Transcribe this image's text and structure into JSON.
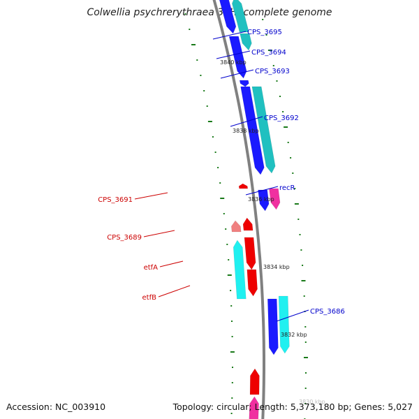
{
  "title": "Colwellia psychrerythraea 34H, complete genome",
  "footer": {
    "accession": "Accession: NC_003910",
    "summary": "Topology: circular; Length: 5,373,180 bp; Genes: 5,027"
  },
  "colors": {
    "backbone": "#808080",
    "forward_label": "#0000cc",
    "reverse_label": "#cc0000",
    "tick": "#1a7a1a"
  },
  "scale_labels": [
    "3840 kbp",
    "3838 kbp",
    "3836 kbp",
    "3834 kbp",
    "3832 kbp",
    "3830 kbp"
  ],
  "gene_labels": [
    {
      "name": "CPS_3695",
      "strand": "forward"
    },
    {
      "name": "CPS_3694",
      "strand": "forward"
    },
    {
      "name": "CPS_3693",
      "strand": "forward"
    },
    {
      "name": "CPS_3692",
      "strand": "forward"
    },
    {
      "name": "recR",
      "strand": "forward"
    },
    {
      "name": "CPS_3686",
      "strand": "forward"
    },
    {
      "name": "CPS_3691",
      "strand": "reverse"
    },
    {
      "name": "CPS_3689",
      "strand": "reverse"
    },
    {
      "name": "etfA",
      "strand": "reverse"
    },
    {
      "name": "etfB",
      "strand": "reverse"
    }
  ]
}
